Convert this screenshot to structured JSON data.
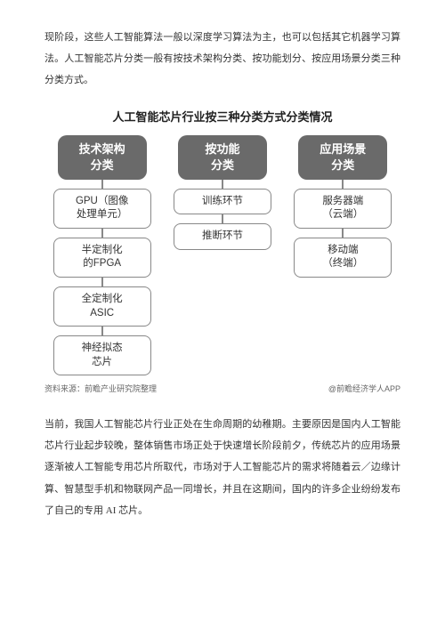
{
  "paragraph1": "现阶段，这些人工智能算法一般以深度学习算法为主，也可以包括其它机器学习算法。人工智能芯片分类一般有按技术架构分类、按功能划分、按应用场景分类三种分类方式。",
  "diagram": {
    "title": "人工智能芯片行业按三种分类方式分类情况",
    "header_bg": "#6a6a6a",
    "header_color": "#ffffff",
    "box_border": "#888888",
    "columns": [
      {
        "header": "技术架构\n分类",
        "items": [
          "GPU（图像\n处理单元）",
          "半定制化\n的FPGA",
          "全定制化\nASIC",
          "神经拟态\n芯片"
        ]
      },
      {
        "header": "按功能\n分类",
        "items": [
          "训练环节",
          "推断环节"
        ]
      },
      {
        "header": "应用场景\n分类",
        "items": [
          "服务器端\n（云端）",
          "移动端\n（终端）"
        ]
      }
    ],
    "source_left": "资料来源：前瞻产业研究院整理",
    "source_right": "@前瞻经济学人APP"
  },
  "paragraph2": "当前，我国人工智能芯片行业正处在生命周期的幼稚期。主要原因是国内人工智能芯片行业起步较晚，整体销售市场正处于快速增长阶段前夕，传统芯片的应用场景逐渐被人工智能专用芯片所取代，市场对于人工智能芯片的需求将随着云／边缘计算、智慧型手机和物联网产品一同增长，并且在这期间，国内的许多企业纷纷发布了自己的专用 AI 芯片。"
}
